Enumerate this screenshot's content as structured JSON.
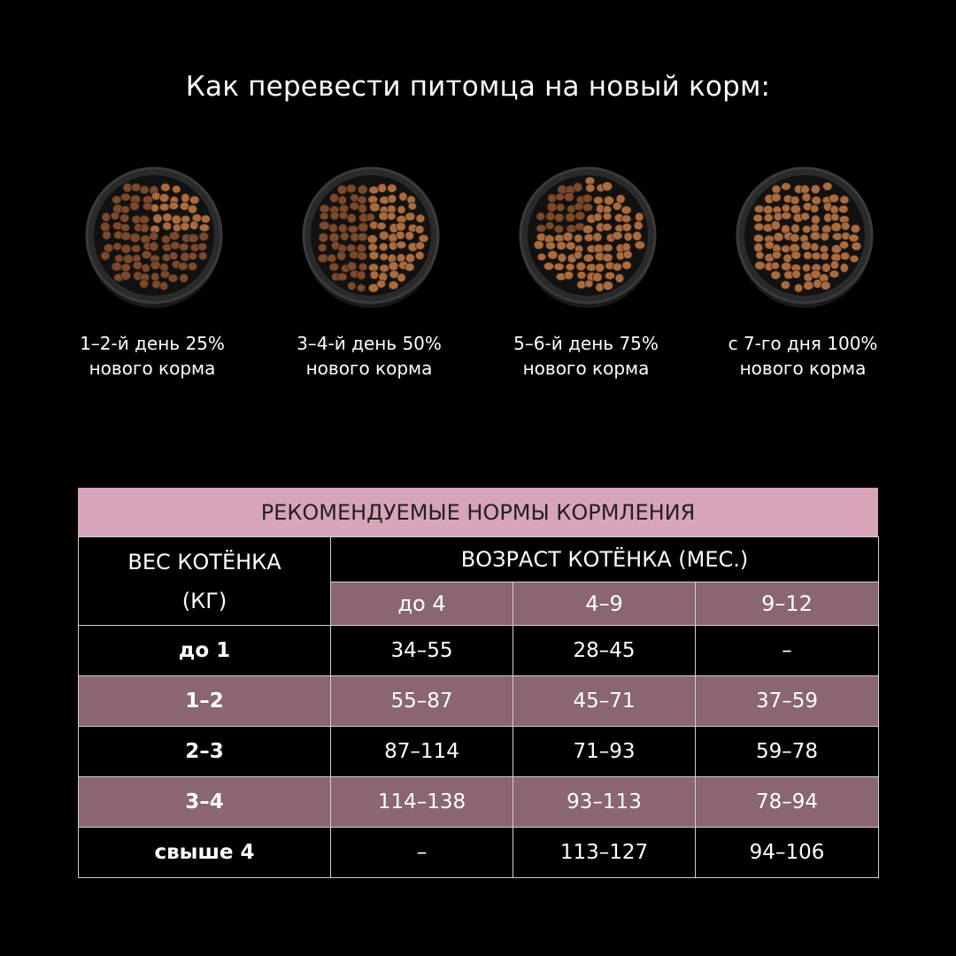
{
  "page": {
    "title": "Как перевести питомца  на новый корм:"
  },
  "steps": [
    {
      "line1": "1–2-й день 25%",
      "line2": "нового корма",
      "new_share": 0.25
    },
    {
      "line1": "3–4-й день 50%",
      "line2": "нового корма",
      "new_share": 0.5
    },
    {
      "line1": "5–6-й день 75%",
      "line2": "нового корма",
      "new_share": 0.75
    },
    {
      "line1": "с 7-го дня 100%",
      "line2": "нового корма",
      "new_share": 1.0
    }
  ],
  "table": {
    "title": "РЕКОМЕНДУЕМЫЕ НОРМЫ КОРМЛЕНИЯ",
    "weight_header_line1": "ВЕС КОТЁНКА",
    "weight_header_line2": "(КГ)",
    "age_header": "ВОЗРАСТ КОТЁНКА (МЕС.)",
    "age_columns": [
      "до 4",
      "4–9",
      "9–12"
    ],
    "rows": [
      {
        "weight": "до 1",
        "values": [
          "34–55",
          "28–45",
          "–"
        ]
      },
      {
        "weight": "1–2",
        "values": [
          "55–87",
          "45–71",
          "37–59"
        ]
      },
      {
        "weight": "2–3",
        "values": [
          "87–114",
          "71–93",
          "59–78"
        ]
      },
      {
        "weight": "3–4",
        "values": [
          "114–138",
          "93–113",
          "78–94"
        ]
      },
      {
        "weight": "свыше 4",
        "values": [
          "–",
          "113–127",
          "94–106"
        ]
      }
    ]
  },
  "colors": {
    "background": "#000000",
    "title_band": "#d8a4ba",
    "alt_row": "#8a6671",
    "kibble_old": "#7a4a2c",
    "kibble_new": "#a86c40"
  }
}
